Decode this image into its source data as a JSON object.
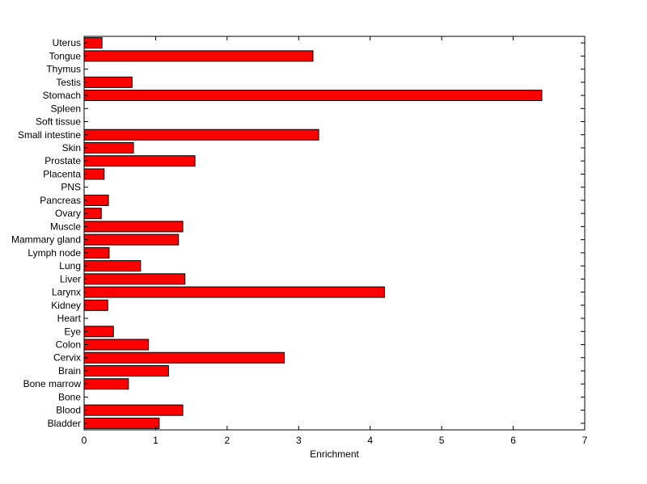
{
  "chart_data": {
    "type": "bar",
    "orientation": "horizontal",
    "title": "",
    "xlabel": "Enrichment",
    "ylabel": "",
    "xlim": [
      0,
      7
    ],
    "xticks": [
      "0",
      "1",
      "2",
      "3",
      "4",
      "5",
      "6",
      "7"
    ],
    "grid": false,
    "legend": "none",
    "bar_color": "#ff0000",
    "edge_color": "#000000",
    "categories": [
      "Uterus",
      "Tongue",
      "Thymus",
      "Testis",
      "Stomach",
      "Spleen",
      "Soft tissue",
      "Small intestine",
      "Skin",
      "Prostate",
      "Placenta",
      "PNS",
      "Pancreas",
      "Ovary",
      "Muscle",
      "Mammary gland",
      "Lymph node",
      "Lung",
      "Liver",
      "Larynx",
      "Kidney",
      "Heart",
      "Eye",
      "Colon",
      "Cervix",
      "Brain",
      "Bone marrow",
      "Bone",
      "Blood",
      "Bladder"
    ],
    "values": [
      0.25,
      3.2,
      0,
      0.67,
      6.4,
      0,
      0,
      3.28,
      0.69,
      1.55,
      0.28,
      0,
      0.34,
      0.24,
      1.38,
      1.32,
      0.35,
      0.79,
      1.41,
      4.2,
      0.33,
      0,
      0.41,
      0.9,
      2.8,
      1.18,
      0.62,
      0,
      1.38,
      1.05
    ]
  }
}
